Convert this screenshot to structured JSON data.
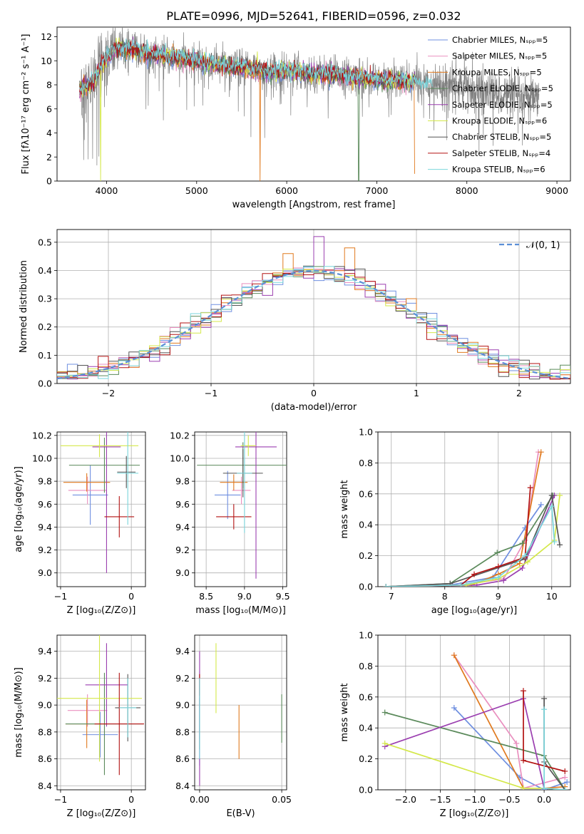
{
  "colors": [
    "#6f8fe0",
    "#e98fbf",
    "#e07a1f",
    "#5b8a5b",
    "#9b3fb0",
    "#d4e84a",
    "#555555",
    "#b31212",
    "#7ad6dc"
  ],
  "chart_data": [
    {
      "id": "spectrum",
      "type": "line",
      "title": "PLATE=0996, MJD=52641, FIBERID=0596, z=0.032",
      "xlabel": "wavelength [Angstrom, rest frame]",
      "ylabel": "Flux [fλ10⁻¹⁷ erg cm⁻² s⁻¹ A⁻¹]",
      "xlim": [
        3450,
        9150
      ],
      "ylim": [
        0,
        12.8
      ],
      "xticks": [
        4000,
        5000,
        6000,
        7000,
        8000,
        9000
      ],
      "yticks": [
        0,
        2,
        4,
        6,
        8,
        10,
        12
      ],
      "legend_position": "top-right",
      "series": [
        {
          "name": "Chabrier MILES, Nₛₚₚ=5"
        },
        {
          "name": "Salpeter MILES, Nₛₚₚ=5"
        },
        {
          "name": "Kroupa MILES, Nₛₚₚ=5"
        },
        {
          "name": "Chabrier ELODIE, Nₛₚₚ=5"
        },
        {
          "name": "Salpeter ELODIE, Nₛₚₚ=5"
        },
        {
          "name": "Kroupa ELODIE, Nₛₚₚ=6"
        },
        {
          "name": "Chabrier STELIB, Nₛₚₚ=5"
        },
        {
          "name": "Salpeter STELIB, Nₛₚₚ=4"
        },
        {
          "name": "Kroupa STELIB, Nₛₚₚ=6"
        }
      ],
      "continuum": {
        "x": [
          3700,
          3850,
          4000,
          4100,
          4200,
          4400,
          4600,
          4800,
          5000,
          5200,
          5400,
          5600,
          5800,
          6000,
          6200,
          6400,
          6600,
          6800,
          7000,
          7200,
          7400,
          7600,
          7800,
          8000,
          8200,
          8400,
          8600,
          8800
        ],
        "y": [
          7.6,
          8.2,
          10.3,
          10.9,
          11.0,
          10.7,
          10.4,
          10.2,
          9.9,
          9.7,
          9.5,
          9.3,
          9.1,
          9.2,
          9.0,
          8.9,
          8.8,
          8.6,
          8.4,
          8.3,
          8.3,
          8.2,
          8.0,
          7.8,
          7.4,
          7.2,
          6.9,
          6.7
        ]
      },
      "data_range": [
        3700,
        8800
      ],
      "model_range": [
        3700,
        7420
      ],
      "dips": [
        {
          "x": 3935,
          "y": 0.0
        },
        {
          "x": 5705,
          "y": 0.0
        },
        {
          "x": 6800,
          "y": 0.0
        },
        {
          "x": 7420,
          "y": 0.6
        }
      ]
    },
    {
      "id": "residuals",
      "type": "histogram",
      "xlabel": "(data-model)/error",
      "ylabel": "Normed distribution",
      "xlim": [
        -2.5,
        2.5
      ],
      "ylim": [
        0,
        0.545
      ],
      "xticks": [
        -2,
        -1,
        0,
        1,
        2
      ],
      "yticks": [
        0.0,
        0.1,
        0.2,
        0.3,
        0.4,
        0.5
      ],
      "bin_width": 0.1,
      "legend": "𝒩(0, 1)",
      "legend_position": "top-right",
      "highlighted_bins": [
        {
          "series": 4,
          "x": 0.0,
          "y": 0.52
        },
        {
          "series": 2,
          "x": -0.3,
          "y": 0.46
        },
        {
          "series": 2,
          "x": 0.3,
          "y": 0.48
        }
      ]
    },
    {
      "id": "age-vs-metallicity",
      "type": "errorbar",
      "xlabel": "Z [log₁₀(Z/Z⊙)]",
      "ylabel": "age  [log₁₀(age/yr)]",
      "xlim": [
        -1.05,
        0.2
      ],
      "ylim": [
        8.88,
        10.23
      ],
      "xticks": [
        -1,
        0
      ],
      "yticks": [
        9.0,
        9.2,
        9.4,
        9.6,
        9.8,
        10.0,
        10.2
      ],
      "points": [
        {
          "x": -0.58,
          "y": 9.68,
          "xerr": 0.25,
          "yerr": 0.26
        },
        {
          "x": -0.62,
          "y": 9.72,
          "xerr": 0.27,
          "yerr": 0.12
        },
        {
          "x": -0.63,
          "y": 9.79,
          "xerr": 0.33,
          "yerr": 0.08
        },
        {
          "x": -0.38,
          "y": 9.94,
          "xerr": 0.5,
          "yerr": 0.24
        },
        {
          "x": -0.35,
          "y": 10.1,
          "xerr": 0.2,
          "yerr": 1.1
        },
        {
          "x": -0.45,
          "y": 10.11,
          "xerr": 0.55,
          "yerr": 0.1
        },
        {
          "x": -0.07,
          "y": 9.88,
          "xerr": 0.13,
          "yerr": 0.14
        },
        {
          "x": -0.17,
          "y": 9.49,
          "xerr": 0.21,
          "yerr": 0.18
        },
        {
          "x": -0.05,
          "y": 9.87,
          "xerr": 0.15,
          "yerr": 0.45
        }
      ]
    },
    {
      "id": "age-vs-mass",
      "type": "errorbar",
      "xlabel": "mass [log₁₀(M/M⊙)]",
      "xlim": [
        8.35,
        9.55
      ],
      "ylim": [
        8.88,
        10.23
      ],
      "xticks": [
        8.5,
        9.0,
        9.5
      ],
      "yticks": [
        9.0,
        9.2,
        9.4,
        9.6,
        9.8,
        10.0,
        10.2
      ],
      "points": [
        {
          "x": 8.78,
          "y": 9.68,
          "xerr": 0.17,
          "yerr": 0.21
        },
        {
          "x": 8.96,
          "y": 9.72,
          "xerr": 0.12,
          "yerr": 0.12
        },
        {
          "x": 8.86,
          "y": 9.79,
          "xerr": 0.18,
          "yerr": 0.07
        },
        {
          "x": 8.98,
          "y": 9.94,
          "xerr": 0.6,
          "yerr": 0.2
        },
        {
          "x": 9.15,
          "y": 10.1,
          "xerr": 0.27,
          "yerr": 1.15
        },
        {
          "x": 9.05,
          "y": 10.11,
          "xerr": 0.1,
          "yerr": 0.09
        },
        {
          "x": 8.98,
          "y": 9.87,
          "xerr": 0.26,
          "yerr": 0.21
        },
        {
          "x": 8.86,
          "y": 9.49,
          "xerr": 0.23,
          "yerr": 0.11
        },
        {
          "x": 9.0,
          "y": 9.87,
          "xerr": 0.1,
          "yerr": 0.52
        }
      ]
    },
    {
      "id": "mass-weight-vs-age",
      "type": "line",
      "xlabel": "age  [log₁₀(age/yr)]",
      "ylabel": "mass weight",
      "xlim": [
        6.75,
        10.35
      ],
      "ylim": [
        0,
        1.0
      ],
      "xticks": [
        7,
        8,
        9,
        10
      ],
      "yticks": [
        0.0,
        0.2,
        0.4,
        0.6,
        0.8,
        1.0
      ],
      "series": [
        {
          "x": [
            6.9,
            8.1,
            8.9,
            9.5,
            9.8
          ],
          "y": [
            0.0,
            0.01,
            0.06,
            0.38,
            0.53
          ]
        },
        {
          "x": [
            6.9,
            8.3,
            9.1,
            9.5,
            9.75
          ],
          "y": [
            0.0,
            0.01,
            0.05,
            0.3,
            0.87
          ]
        },
        {
          "x": [
            6.9,
            8.5,
            9.0,
            9.4,
            9.8
          ],
          "y": [
            0.0,
            0.01,
            0.08,
            0.15,
            0.87
          ]
        },
        {
          "x": [
            6.9,
            8.1,
            8.98,
            9.45,
            10.02
          ],
          "y": [
            0.0,
            0.02,
            0.22,
            0.28,
            0.59
          ]
        },
        {
          "x": [
            6.9,
            8.6,
            9.1,
            9.45,
            10.05
          ],
          "y": [
            0.0,
            0.01,
            0.04,
            0.12,
            0.59
          ]
        },
        {
          "x": [
            6.9,
            8.4,
            9.0,
            9.55,
            10.05,
            10.15
          ],
          "y": [
            0.0,
            0.01,
            0.05,
            0.16,
            0.3,
            0.59
          ]
        },
        {
          "x": [
            6.9,
            8.1,
            9.5,
            10.0,
            10.15
          ],
          "y": [
            0.0,
            0.02,
            0.18,
            0.59,
            0.27
          ]
        },
        {
          "x": [
            6.9,
            8.3,
            8.55,
            9.0,
            9.5,
            9.6
          ],
          "y": [
            0.0,
            0.01,
            0.08,
            0.13,
            0.19,
            0.64
          ]
        },
        {
          "x": [
            6.9,
            8.3,
            9.0,
            9.5,
            10.0,
            10.05
          ],
          "y": [
            0.0,
            0.01,
            0.06,
            0.2,
            0.52,
            0.29
          ]
        }
      ]
    },
    {
      "id": "mass-vs-metallicity",
      "type": "errorbar",
      "xlabel": "Z [log₁₀(Z/Z⊙)]",
      "ylabel": "mass [log₁₀(M/M⊙)]",
      "xlim": [
        -1.05,
        0.2
      ],
      "ylim": [
        8.37,
        9.52
      ],
      "xticks": [
        -1,
        0
      ],
      "yticks": [
        8.4,
        8.6,
        8.8,
        9.0,
        9.2,
        9.4
      ],
      "points": [
        {
          "x": -0.44,
          "y": 8.78,
          "xerr": 0.25,
          "yerr": 0.17
        },
        {
          "x": -0.62,
          "y": 8.96,
          "xerr": 0.28,
          "yerr": 0.12
        },
        {
          "x": -0.63,
          "y": 8.86,
          "xerr": 0.3,
          "yerr": 0.18
        },
        {
          "x": -0.38,
          "y": 8.86,
          "xerr": 0.55,
          "yerr": 0.38
        },
        {
          "x": -0.35,
          "y": 9.15,
          "xerr": 0.3,
          "yerr": 0.31
        },
        {
          "x": -0.45,
          "y": 9.05,
          "xerr": 0.6,
          "yerr": 0.47
        },
        {
          "x": -0.05,
          "y": 8.98,
          "xerr": 0.18,
          "yerr": 0.25
        },
        {
          "x": -0.17,
          "y": 8.86,
          "xerr": 0.35,
          "yerr": 0.38
        },
        {
          "x": -0.05,
          "y": 8.98,
          "xerr": 0.12,
          "yerr": 0.22
        }
      ]
    },
    {
      "id": "mass-vs-extinction",
      "type": "errorbar",
      "xlabel": "E(B-V)",
      "xlim": [
        -0.003,
        0.053
      ],
      "ylim": [
        8.37,
        9.52
      ],
      "xticks": [
        0.0,
        0.05
      ],
      "yticks": [
        8.4,
        8.6,
        8.8,
        9.0,
        9.2,
        9.4
      ],
      "points": [
        {
          "x": 0.0,
          "y": 8.8,
          "yerr": 0.25
        },
        {
          "x": 0.0,
          "y": 9.0,
          "yerr": 0.25
        },
        {
          "x": 0.024,
          "y": 8.8,
          "yerr": 0.2
        },
        {
          "x": 0.05,
          "y": 8.9,
          "yerr": 0.18
        },
        {
          "x": 0.0,
          "y": 8.9,
          "yerr": 0.5
        },
        {
          "x": 0.01,
          "y": 9.2,
          "yerr": 0.26
        },
        {
          "x": 0.0,
          "y": 8.95,
          "yerr": 0.28
        },
        {
          "x": 0.0,
          "y": 9.15,
          "yerr": 0.08
        },
        {
          "x": 0.0,
          "y": 8.9,
          "yerr": 0.3
        }
      ]
    },
    {
      "id": "mass-weight-vs-metallicity",
      "type": "line",
      "xlabel": "Z [log₁₀(Z/Z⊙)]",
      "ylabel": "mass weight",
      "xlim": [
        -2.4,
        0.38
      ],
      "ylim": [
        0,
        1.0
      ],
      "xticks": [
        -2.0,
        -1.5,
        -1.0,
        -0.5,
        0.0
      ],
      "yticks": [
        0.0,
        0.2,
        0.4,
        0.6,
        0.8,
        1.0
      ],
      "series": [
        {
          "x": [
            -1.3,
            -0.35,
            0.0,
            0.33
          ],
          "y": [
            0.53,
            0.08,
            0.0,
            0.05
          ]
        },
        {
          "x": [
            -1.3,
            -0.4,
            -0.3,
            0.3
          ],
          "y": [
            0.87,
            0.3,
            0.01,
            0.08
          ]
        },
        {
          "x": [
            -1.3,
            -0.3,
            0.0,
            0.3
          ],
          "y": [
            0.87,
            0.01,
            0.01,
            0.02
          ]
        },
        {
          "x": [
            -2.3,
            0.0,
            0.3
          ],
          "y": [
            0.5,
            0.22,
            0.0
          ]
        },
        {
          "x": [
            -2.3,
            -0.3,
            0.0,
            0.3
          ],
          "y": [
            0.28,
            0.59,
            0.01,
            0.0
          ]
        },
        {
          "x": [
            -2.3,
            -0.3,
            0.0,
            0.3
          ],
          "y": [
            0.3,
            0.01,
            0.01,
            0.0
          ]
        },
        {
          "x": [
            0.0,
            0.0,
            0.3
          ],
          "y": [
            0.59,
            0.18,
            0.0
          ]
        },
        {
          "x": [
            -0.3,
            -0.3,
            0.3
          ],
          "y": [
            0.64,
            0.19,
            0.12
          ]
        },
        {
          "x": [
            0.0,
            0.0,
            0.3
          ],
          "y": [
            0.52,
            0.01,
            0.0
          ]
        }
      ]
    }
  ]
}
